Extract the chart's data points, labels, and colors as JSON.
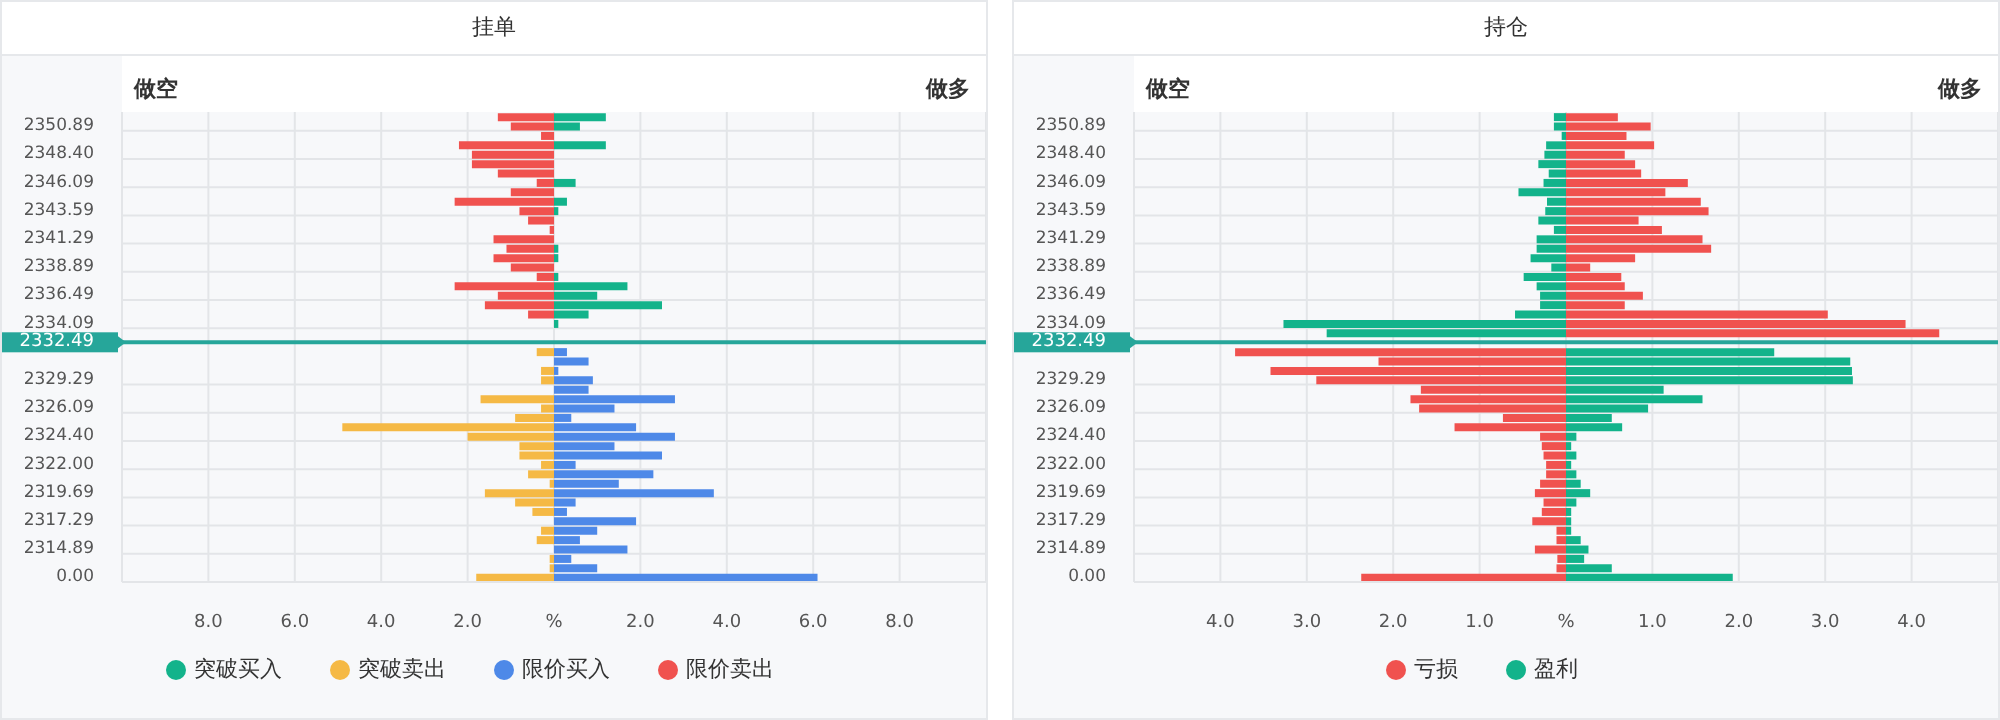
{
  "chart_data": [
    {
      "type": "bar",
      "orientation": "horizontal",
      "stacked": true,
      "title": "挂单",
      "annotations": [
        "做空",
        "做多"
      ],
      "categories": [
        null,
        "2350.89",
        null,
        null,
        "2348.40",
        null,
        null,
        "2346.09",
        null,
        null,
        "2343.59",
        null,
        null,
        "2341.29",
        null,
        null,
        "2338.89",
        null,
        null,
        "2336.49",
        null,
        null,
        "2334.09",
        null,
        "2332.49",
        null,
        null,
        null,
        "2329.29",
        null,
        null,
        "2326.09",
        null,
        null,
        "2324.40",
        null,
        null,
        "2322.00",
        null,
        null,
        "2319.69",
        null,
        null,
        "2317.29",
        null,
        null,
        "2314.89",
        null,
        null,
        "0.00"
      ],
      "series": [
        {
          "name": "突破买入",
          "color": "#13b38b",
          "values": [
            1.2,
            0.6,
            null,
            1.2,
            null,
            null,
            null,
            0.5,
            null,
            0.3,
            0.1,
            null,
            null,
            null,
            0.1,
            0.1,
            null,
            0.1,
            1.7,
            1.0,
            2.5,
            0.8,
            0.1,
            null,
            null,
            null,
            null,
            null,
            null,
            null,
            null,
            null,
            null,
            null,
            null,
            null,
            null,
            null,
            null,
            null,
            null,
            null,
            null,
            null,
            null,
            null,
            null,
            null,
            null,
            null
          ]
        },
        {
          "name": "限价买入",
          "color": "#4e89e8",
          "values": [
            null,
            null,
            null,
            null,
            null,
            null,
            null,
            null,
            null,
            null,
            null,
            null,
            null,
            null,
            null,
            null,
            null,
            null,
            null,
            null,
            null,
            null,
            null,
            null,
            null,
            0.3,
            0.8,
            0.1,
            0.9,
            0.8,
            2.8,
            1.4,
            0.4,
            1.9,
            2.8,
            1.4,
            2.5,
            0.5,
            2.3,
            1.5,
            3.7,
            0.5,
            0.3,
            1.9,
            1.0,
            0.6,
            1.7,
            0.4,
            1.0,
            6.1
          ]
        },
        {
          "name": "限价卖出",
          "color": "#f0524f",
          "values": [
            -1.3,
            -1.0,
            -0.3,
            -2.2,
            -1.9,
            -1.9,
            -1.3,
            -0.4,
            -1.0,
            -2.3,
            -0.8,
            -0.6,
            -0.1,
            -1.4,
            -1.1,
            -1.4,
            -1.0,
            -0.4,
            -2.3,
            -1.3,
            -1.6,
            -0.6,
            null,
            null,
            null,
            null,
            null,
            null,
            null,
            null,
            null,
            null,
            null,
            null,
            null,
            null,
            null,
            null,
            null,
            null,
            null,
            null,
            null,
            null,
            null,
            null,
            null,
            null,
            null,
            null
          ]
        },
        {
          "name": "突破卖出",
          "color": "#f5b945",
          "values": [
            null,
            null,
            null,
            null,
            null,
            null,
            null,
            null,
            null,
            null,
            null,
            null,
            null,
            null,
            null,
            null,
            null,
            null,
            null,
            null,
            null,
            null,
            null,
            null,
            null,
            -0.4,
            null,
            -0.3,
            -0.3,
            null,
            -1.7,
            -0.3,
            -0.9,
            -4.9,
            -2.0,
            -0.8,
            -0.8,
            -0.3,
            -0.6,
            -0.1,
            -1.6,
            -0.9,
            -0.5,
            null,
            -0.3,
            -0.4,
            null,
            -0.1,
            -0.1,
            -1.8
          ]
        }
      ],
      "xlim": [
        -10,
        10
      ],
      "xticks": [
        {
          "value": -8,
          "label": "8.0"
        },
        {
          "value": -6,
          "label": "6.0"
        },
        {
          "value": -4,
          "label": "4.0"
        },
        {
          "value": -2,
          "label": "2.0"
        },
        {
          "value": 0,
          "label": "%"
        },
        {
          "value": 2,
          "label": "2.0"
        },
        {
          "value": 4,
          "label": "4.0"
        },
        {
          "value": 6,
          "label": "6.0"
        },
        {
          "value": 8,
          "label": "8.0"
        }
      ],
      "ref_lines": [
        {
          "axis": "y",
          "value": "2332.49",
          "color": "#26a69a"
        }
      ],
      "grid": true,
      "legend": "bottom"
    },
    {
      "type": "bar",
      "orientation": "horizontal",
      "stacked": true,
      "title": "持仓",
      "annotations": [
        "做空",
        "做多"
      ],
      "categories": [
        null,
        "2350.89",
        null,
        null,
        "2348.40",
        null,
        null,
        "2346.09",
        null,
        null,
        "2343.59",
        null,
        null,
        "2341.29",
        null,
        null,
        "2338.89",
        null,
        null,
        "2336.49",
        null,
        null,
        "2334.09",
        null,
        "2332.49",
        null,
        null,
        null,
        "2329.29",
        null,
        null,
        "2326.09",
        null,
        null,
        "2324.40",
        null,
        null,
        "2322.00",
        null,
        null,
        "2319.69",
        null,
        null,
        "2317.29",
        null,
        null,
        "2314.89",
        null,
        null,
        "0.00"
      ],
      "series": [
        {
          "name": "盈利",
          "color": "#13b38b",
          "values": [
            -0.14,
            -0.14,
            -0.05,
            -0.23,
            -0.25,
            -0.32,
            -0.2,
            -0.26,
            -0.55,
            -0.22,
            -0.24,
            -0.32,
            -0.14,
            -0.34,
            -0.34,
            -0.41,
            -0.17,
            -0.49,
            -0.34,
            -0.3,
            -0.3,
            -0.59,
            -3.27,
            -2.77,
            null,
            2.41,
            3.29,
            3.31,
            3.32,
            1.13,
            1.58,
            0.95,
            0.53,
            0.65,
            0.12,
            0.06,
            0.12,
            0.06,
            0.12,
            0.17,
            0.28,
            0.12,
            0.06,
            0.06,
            0.06,
            0.17,
            0.26,
            0.21,
            0.53,
            1.93
          ]
        },
        {
          "name": "亏损",
          "color": "#f0524f",
          "values": [
            0.6,
            0.98,
            0.7,
            1.02,
            0.68,
            0.8,
            0.87,
            1.41,
            1.15,
            1.56,
            1.65,
            0.84,
            1.11,
            1.58,
            1.68,
            0.8,
            0.28,
            0.64,
            0.68,
            0.89,
            0.68,
            3.03,
            3.93,
            4.32,
            null,
            -3.83,
            -2.17,
            -3.42,
            -2.89,
            -1.68,
            -1.8,
            -1.7,
            -0.73,
            -1.29,
            -0.3,
            -0.28,
            -0.26,
            -0.23,
            -0.23,
            -0.3,
            -0.36,
            -0.26,
            -0.28,
            -0.39,
            -0.11,
            -0.11,
            -0.36,
            -0.1,
            -0.11,
            -2.37
          ]
        }
      ],
      "xlim": [
        -5,
        5
      ],
      "xticks": [
        {
          "value": -4,
          "label": "4.0"
        },
        {
          "value": -3,
          "label": "3.0"
        },
        {
          "value": -2,
          "label": "2.0"
        },
        {
          "value": -1,
          "label": "1.0"
        },
        {
          "value": 0,
          "label": "%"
        },
        {
          "value": 1,
          "label": "1.0"
        },
        {
          "value": 2,
          "label": "2.0"
        },
        {
          "value": 3,
          "label": "3.0"
        },
        {
          "value": 4,
          "label": "4.0"
        }
      ],
      "ref_lines": [
        {
          "axis": "y",
          "value": "2332.49",
          "color": "#26a69a"
        }
      ],
      "grid": true,
      "legend": "bottom"
    }
  ]
}
